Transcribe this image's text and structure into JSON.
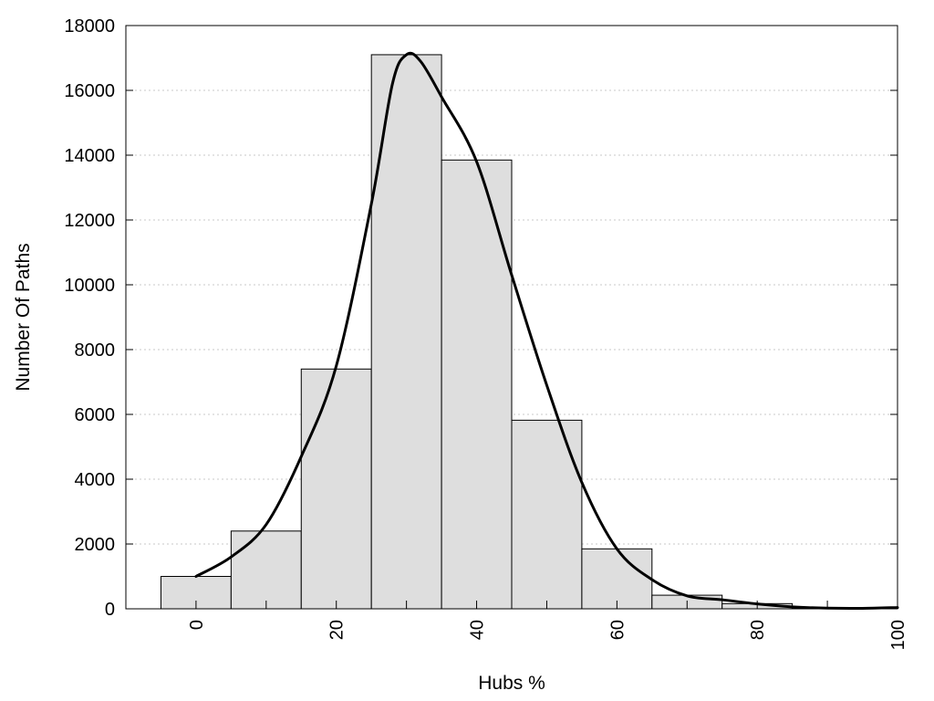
{
  "chart_data": {
    "type": "bar",
    "title": "",
    "xlabel": "Hubs %",
    "ylabel": "Number Of Paths",
    "xlim": [
      -10,
      100
    ],
    "ylim": [
      0,
      18000
    ],
    "x_ticks": [
      0,
      20,
      40,
      60,
      80,
      100
    ],
    "y_ticks": [
      0,
      2000,
      4000,
      6000,
      8000,
      10000,
      12000,
      14000,
      16000,
      18000
    ],
    "grid": "horizontal dotted",
    "bin_width": 10,
    "bins": [
      {
        "center": 0,
        "value": 1000
      },
      {
        "center": 10,
        "value": 2400
      },
      {
        "center": 20,
        "value": 7400
      },
      {
        "center": 30,
        "value": 17100
      },
      {
        "center": 40,
        "value": 13850
      },
      {
        "center": 50,
        "value": 5820
      },
      {
        "center": 60,
        "value": 1850
      },
      {
        "center": 70,
        "value": 420
      },
      {
        "center": 80,
        "value": 160
      },
      {
        "center": 90,
        "value": 30
      }
    ],
    "density_curve": {
      "x": [
        0,
        5,
        10,
        15,
        20,
        25,
        28,
        30,
        32,
        35,
        40,
        45,
        50,
        55,
        60,
        65,
        70,
        75,
        80,
        85,
        90,
        95,
        100
      ],
      "y": [
        1000,
        1600,
        2600,
        4700,
        7500,
        12500,
        16200,
        17100,
        16900,
        15800,
        13800,
        10300,
        6900,
        3900,
        1850,
        900,
        400,
        280,
        150,
        60,
        20,
        15,
        40
      ]
    },
    "colors": {
      "bar_fill": "#dedede",
      "bar_stroke": "#000000",
      "curve": "#000000"
    }
  }
}
